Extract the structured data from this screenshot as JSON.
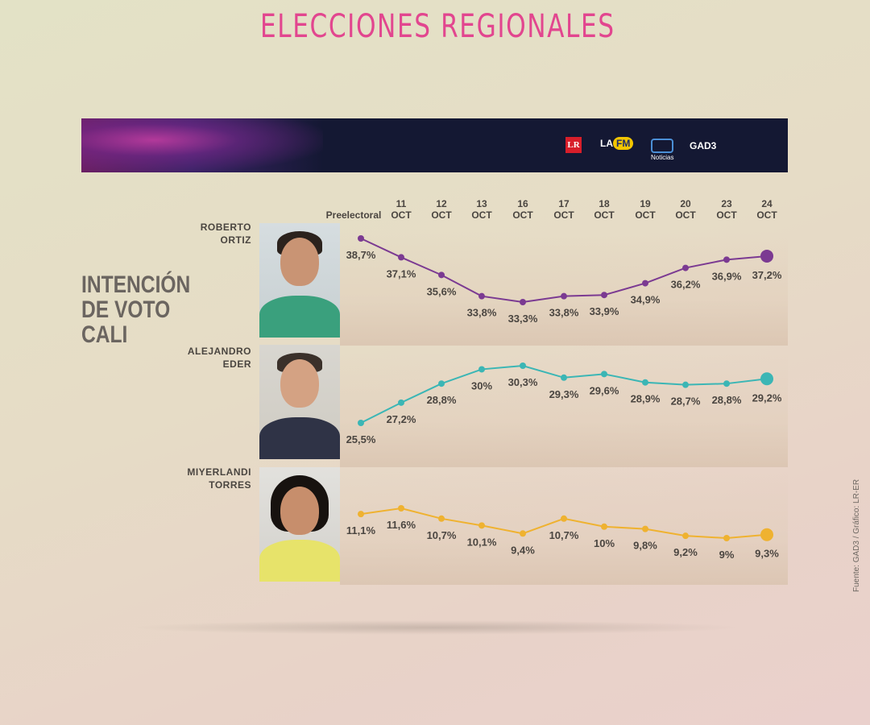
{
  "header": {
    "title": "ELECCIONES REGIONALES",
    "logos": [
      "LR",
      "LA",
      "FM",
      "Noticias",
      "GAD3"
    ]
  },
  "side_title": "INTENCIÓN DE VOTO CALI",
  "source": "Fuente: GAD3 / Gráfico: LR-ER",
  "colors": {
    "background": "#e3dcc6",
    "banner": "#141833",
    "title_pink": "#e2468f",
    "ortiz": "#7b3a92",
    "eder": "#3bb6b5",
    "torres": "#efb230"
  },
  "chart_data": {
    "type": "line",
    "title": "INTENCIÓN DE VOTO CALI",
    "x_top": [
      "",
      "11",
      "12",
      "13",
      "16",
      "17",
      "18",
      "19",
      "20",
      "23",
      "24"
    ],
    "x_bottom": [
      "Preelectoral",
      "OCT",
      "OCT",
      "OCT",
      "OCT",
      "OCT",
      "OCT",
      "OCT",
      "OCT",
      "OCT",
      "OCT"
    ],
    "series": [
      {
        "name_line1": "ROBERTO",
        "name_line2": "ORTIZ",
        "color": "#7b3a92",
        "values": [
          38.7,
          37.1,
          35.6,
          33.8,
          33.3,
          33.8,
          33.9,
          34.9,
          36.2,
          36.9,
          37.2
        ],
        "labels": [
          "38,7%",
          "37,1%",
          "35,6%",
          "33,8%",
          "33,3%",
          "33,8%",
          "33,9%",
          "34,9%",
          "36,2%",
          "36,9%",
          "37,2%"
        ]
      },
      {
        "name_line1": "ALEJANDRO",
        "name_line2": "EDER",
        "color": "#3bb6b5",
        "values": [
          25.5,
          27.2,
          28.8,
          30,
          30.3,
          29.3,
          29.6,
          28.9,
          28.7,
          28.8,
          29.2
        ],
        "labels": [
          "25,5%",
          "27,2%",
          "28,8%",
          "30%",
          "30,3%",
          "29,3%",
          "29,6%",
          "28,9%",
          "28,7%",
          "28,8%",
          "29,2%"
        ]
      },
      {
        "name_line1": "MIYERLANDI",
        "name_line2": "TORRES",
        "color": "#efb230",
        "values": [
          11.1,
          11.6,
          10.7,
          10.1,
          9.4,
          10.7,
          10,
          9.8,
          9.2,
          9,
          9.3
        ],
        "labels": [
          "11,1%",
          "11,6%",
          "10,7%",
          "10,1%",
          "9,4%",
          "10,7%",
          "10%",
          "9,8%",
          "9,2%",
          "9%",
          "9,3%"
        ]
      }
    ]
  }
}
